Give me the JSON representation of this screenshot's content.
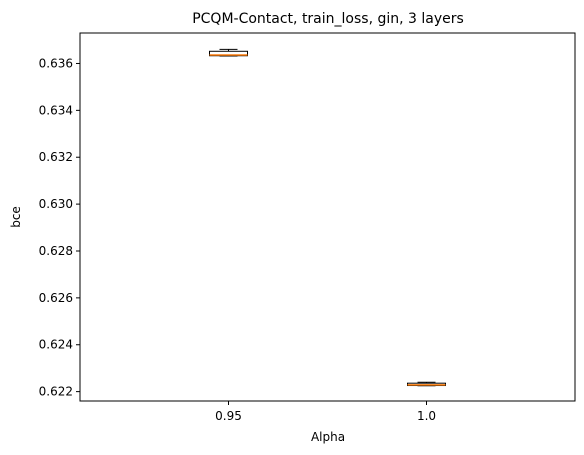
{
  "chart_data": {
    "type": "box",
    "title": "PCQM-Contact, train_loss, gin, 3 layers",
    "xlabel": "Alpha",
    "ylabel": "bce",
    "categories": [
      "0.95",
      "1.0"
    ],
    "ylim": [
      0.6216,
      0.6373
    ],
    "yticks": [
      "0.622",
      "0.624",
      "0.626",
      "0.628",
      "0.630",
      "0.632",
      "0.634",
      "0.636"
    ],
    "boxes": [
      {
        "category": "0.95",
        "whisker_low": 0.63632,
        "q1": 0.63633,
        "median": 0.63636,
        "q3": 0.63652,
        "whisker_high": 0.6366
      },
      {
        "category": "1.0",
        "whisker_low": 0.62225,
        "q1": 0.62226,
        "median": 0.62229,
        "q3": 0.62236,
        "whisker_high": 0.6224
      }
    ],
    "colors": {
      "box_edge": "#000000",
      "median": "#ff7f0e",
      "background": "#ffffff"
    },
    "grid": false
  }
}
